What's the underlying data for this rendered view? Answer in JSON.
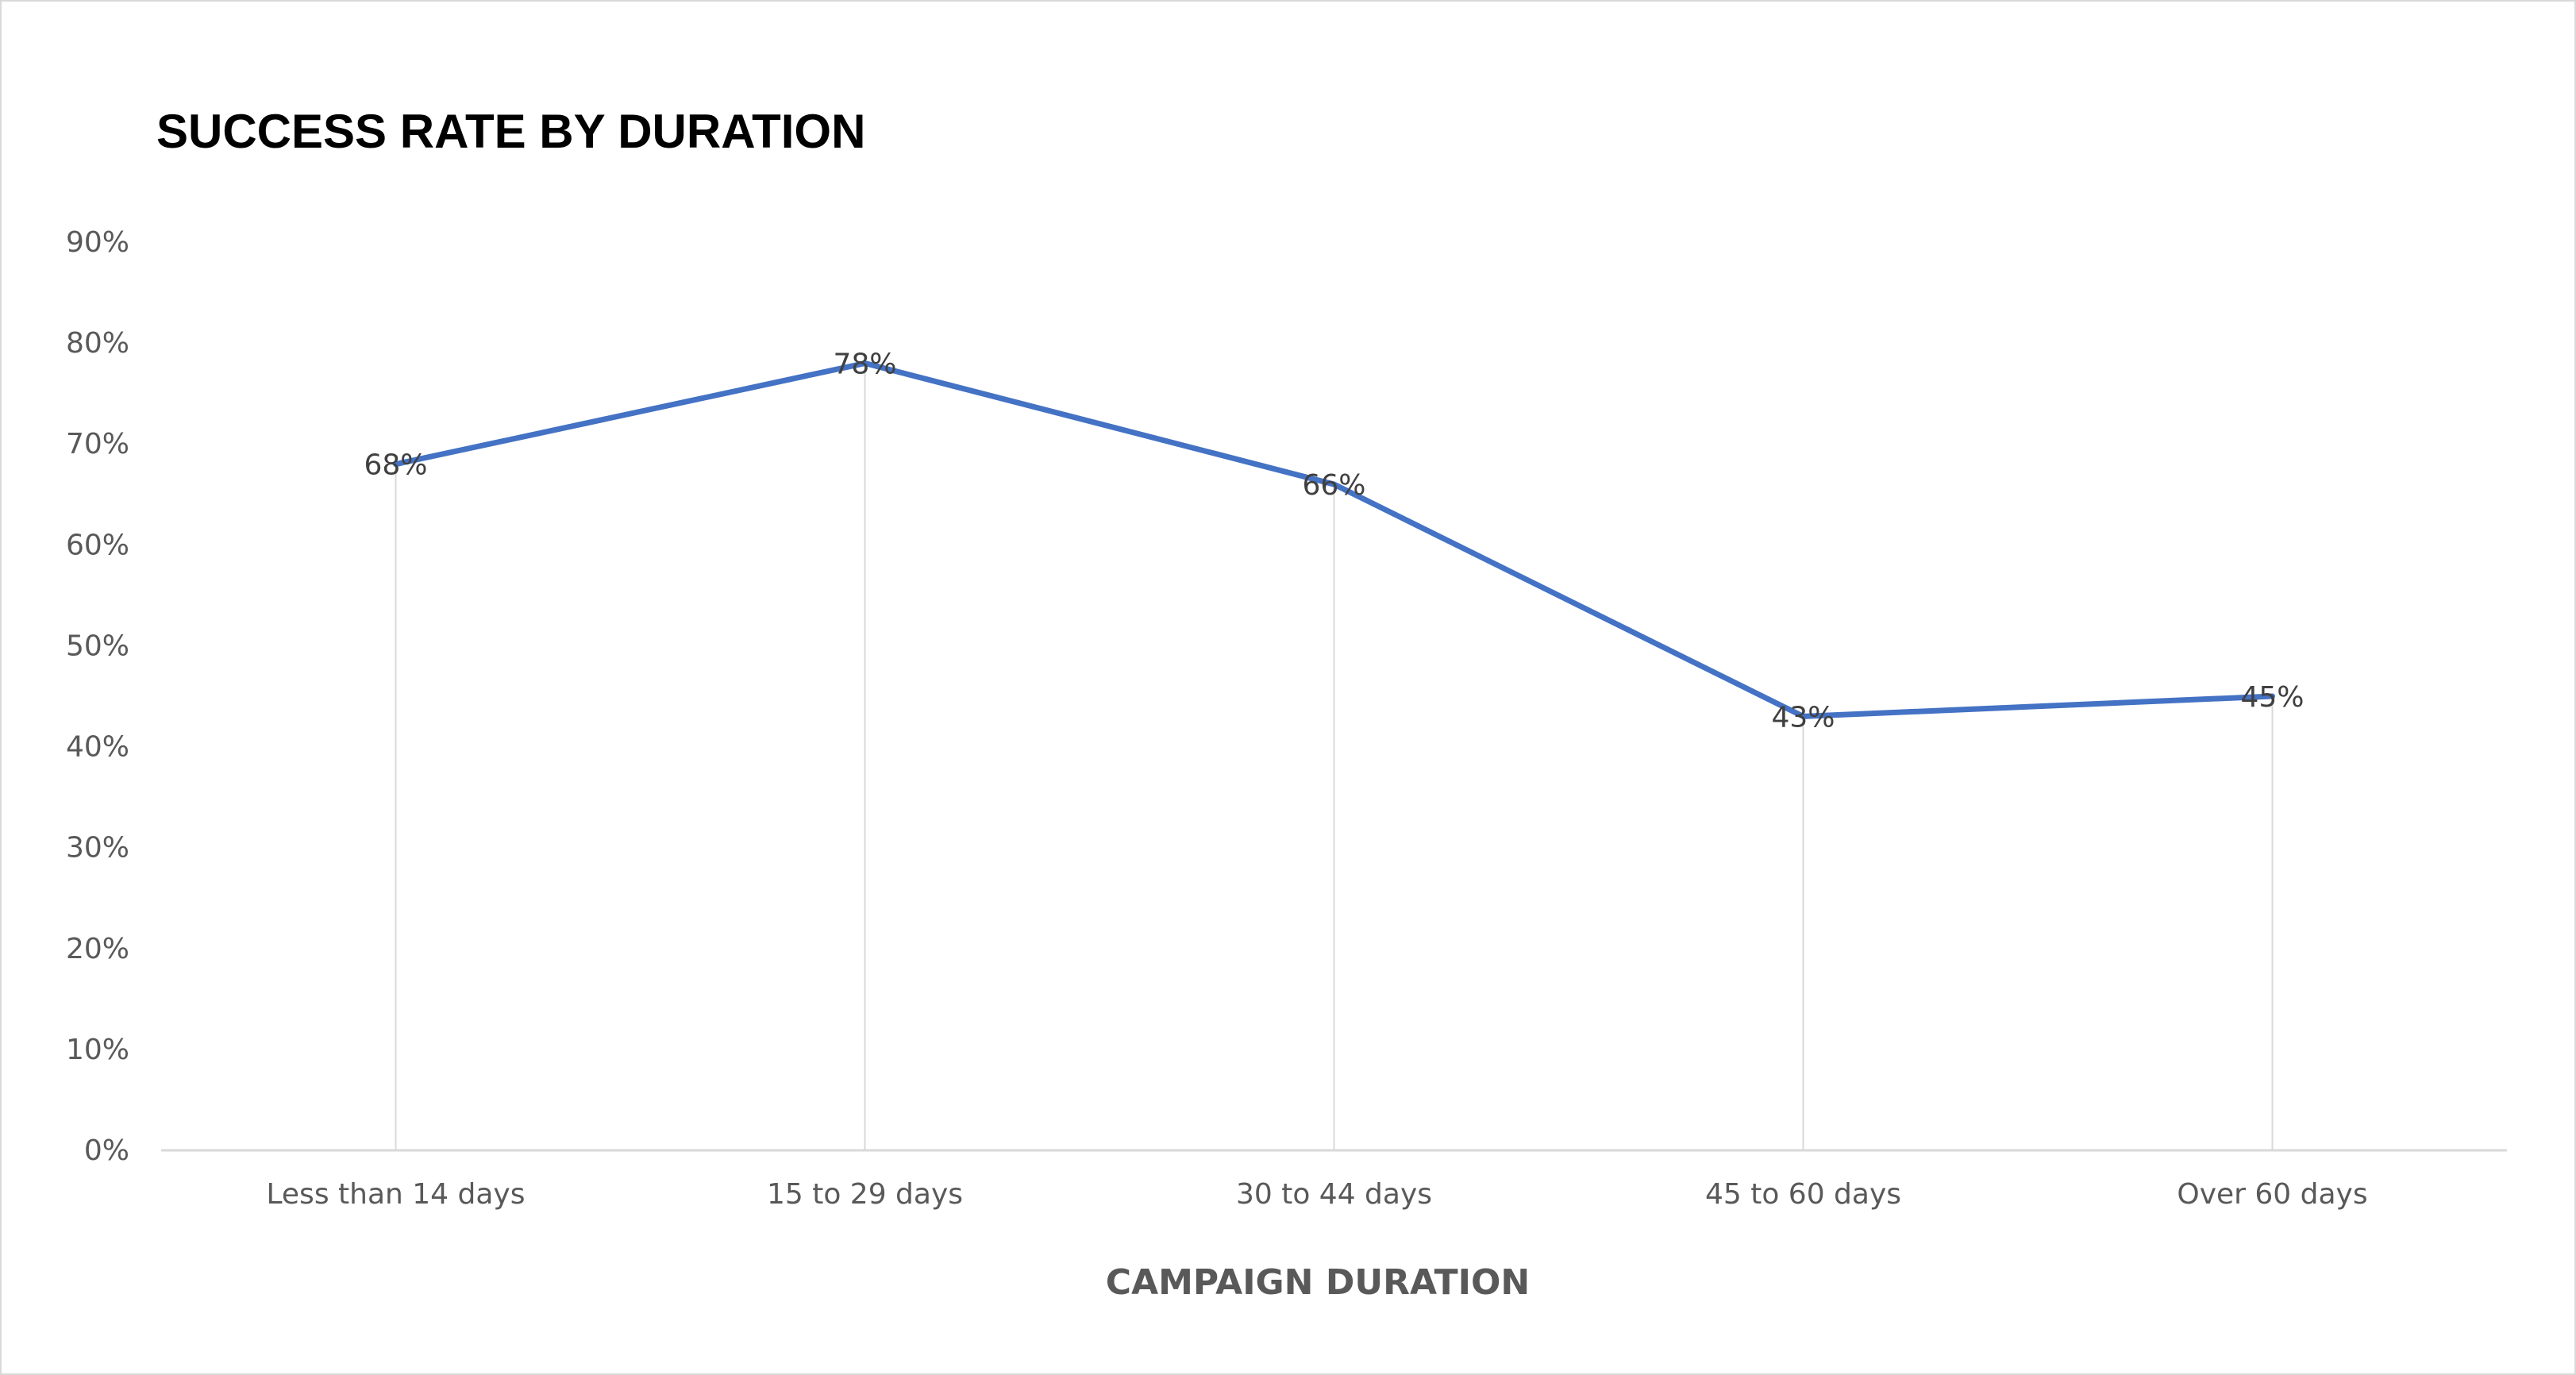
{
  "chart_data": {
    "type": "line",
    "title": "SUCCESS RATE BY DURATION",
    "xlabel": "CAMPAIGN DURATION",
    "ylabel": "",
    "categories": [
      "Less than 14 days",
      "15 to 29 days",
      "30 to 44 days",
      "45 to 60 days",
      "Over 60 days"
    ],
    "series": [
      {
        "values": [
          68,
          78,
          66,
          43,
          45
        ],
        "labels": [
          "68%",
          "78%",
          "66%",
          "43%",
          "45%"
        ],
        "color": "#4472C4"
      }
    ],
    "ylim": [
      0,
      90
    ],
    "yticks": [
      0,
      10,
      20,
      30,
      40,
      50,
      60,
      70,
      80,
      90
    ],
    "ytick_labels": [
      "0%",
      "10%",
      "20%",
      "30%",
      "40%",
      "50%",
      "60%",
      "70%",
      "80%",
      "90%"
    ],
    "drop_lines": true,
    "legend": "none"
  }
}
